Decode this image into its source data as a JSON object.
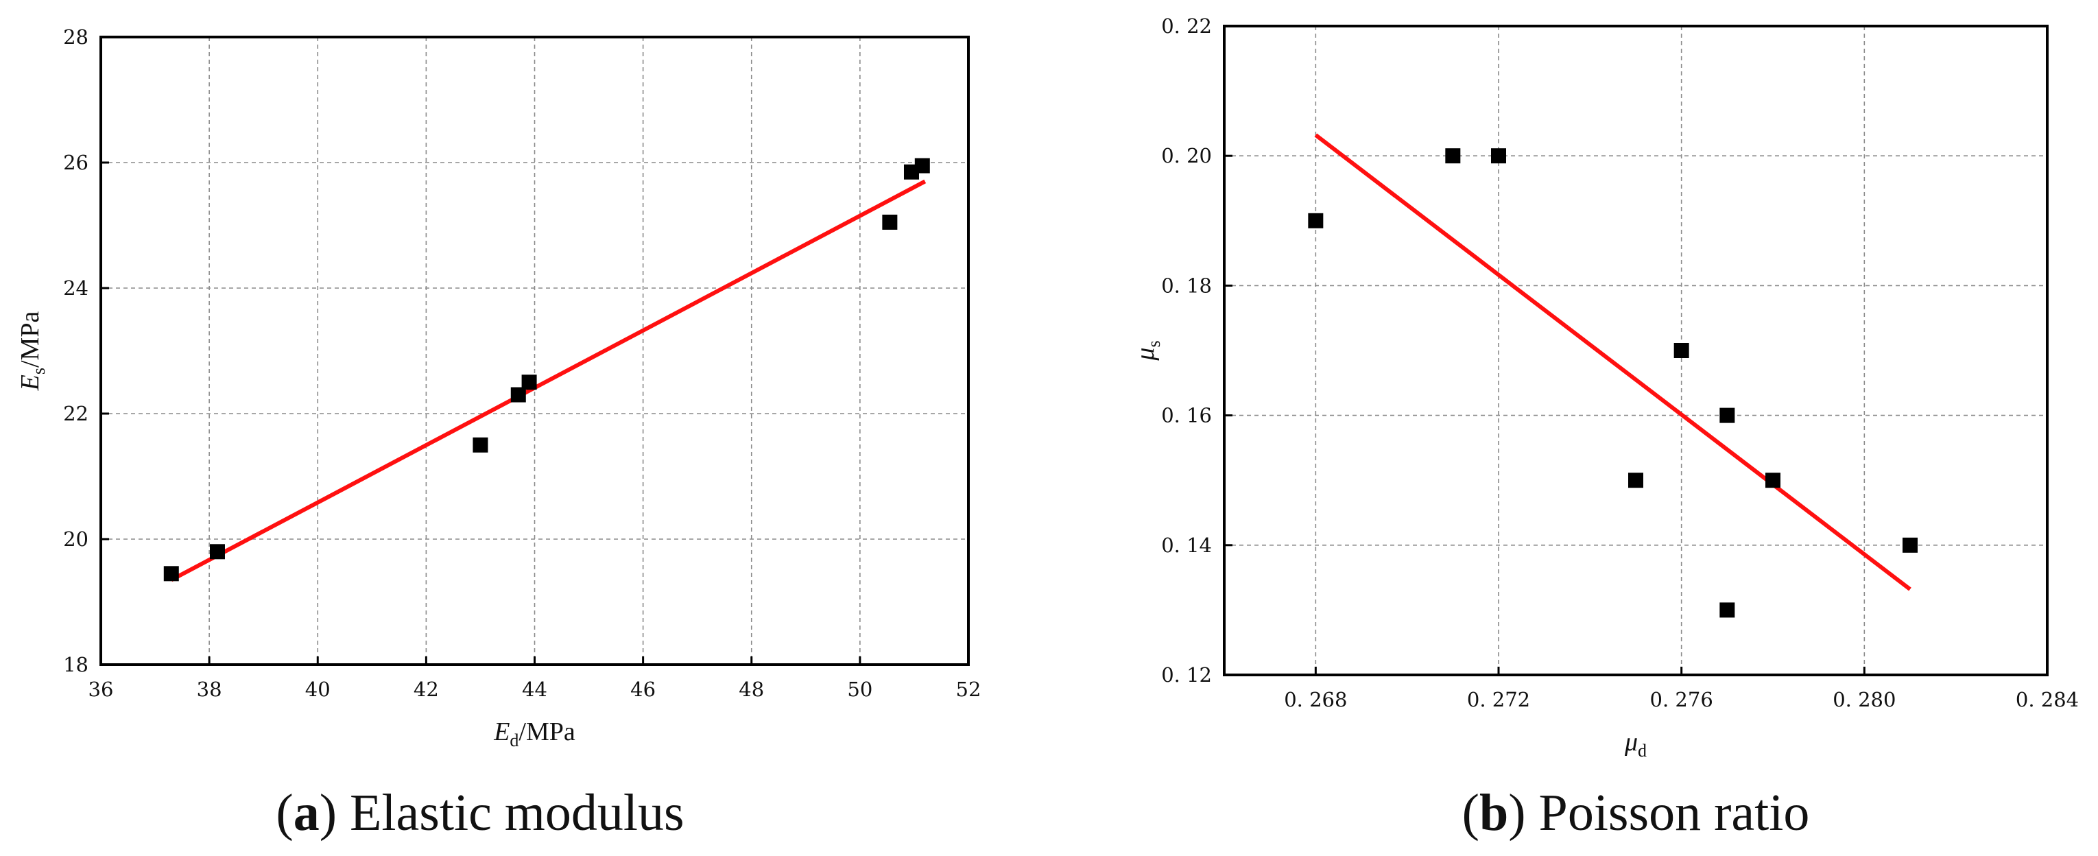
{
  "chart_data": [
    {
      "type": "scatter",
      "caption_letter": "a",
      "caption_text": "Elastic modulus",
      "xlabel_main": "E",
      "xlabel_sub": "d",
      "xlabel_unit": "/MPa",
      "ylabel_main": "E",
      "ylabel_sub": "s",
      "ylabel_unit": "/MPa",
      "xlim": [
        36,
        52
      ],
      "ylim": [
        18,
        28
      ],
      "xticks": [
        36,
        38,
        40,
        42,
        44,
        46,
        48,
        50,
        52
      ],
      "yticks": [
        18,
        20,
        22,
        24,
        26,
        28
      ],
      "xtick_labels": [
        "36",
        "38",
        "40",
        "42",
        "44",
        "46",
        "48",
        "50",
        "52"
      ],
      "ytick_labels": [
        "18",
        "20",
        "22",
        "24",
        "26",
        "28"
      ],
      "grid": true,
      "points": [
        [
          37.3,
          19.45
        ],
        [
          38.15,
          19.8
        ],
        [
          43.0,
          21.5
        ],
        [
          43.7,
          22.3
        ],
        [
          43.9,
          22.5
        ],
        [
          50.55,
          25.05
        ],
        [
          50.95,
          25.85
        ],
        [
          51.15,
          25.95
        ]
      ],
      "fit_line": [
        [
          37.3,
          19.35
        ],
        [
          51.2,
          25.7
        ]
      ],
      "marker_color": "#000000",
      "line_color": "#ff1010"
    },
    {
      "type": "scatter",
      "caption_letter": "b",
      "caption_text": "Poisson ratio",
      "xlabel_main": "μ",
      "xlabel_sub": "d",
      "xlabel_unit": "",
      "ylabel_main": "μ",
      "ylabel_sub": "s",
      "ylabel_unit": "",
      "xlim": [
        0.266,
        0.284
      ],
      "ylim": [
        0.12,
        0.22
      ],
      "xticks": [
        0.268,
        0.272,
        0.276,
        0.28,
        0.284
      ],
      "yticks": [
        0.12,
        0.14,
        0.16,
        0.18,
        0.2,
        0.22
      ],
      "xtick_labels": [
        "0. 268",
        "0. 272",
        "0. 276",
        "0. 280",
        "0. 284"
      ],
      "ytick_labels": [
        "0. 12",
        "0. 14",
        "0. 16",
        "0. 18",
        "0. 20",
        "0. 22"
      ],
      "grid": true,
      "points": [
        [
          0.268,
          0.19
        ],
        [
          0.271,
          0.2
        ],
        [
          0.272,
          0.2
        ],
        [
          0.275,
          0.15
        ],
        [
          0.276,
          0.17
        ],
        [
          0.277,
          0.16
        ],
        [
          0.277,
          0.13
        ],
        [
          0.278,
          0.15
        ],
        [
          0.281,
          0.14
        ]
      ],
      "fit_line": [
        [
          0.268,
          0.2032
        ],
        [
          0.281,
          0.1332
        ]
      ],
      "marker_color": "#000000",
      "line_color": "#ff1010"
    }
  ]
}
